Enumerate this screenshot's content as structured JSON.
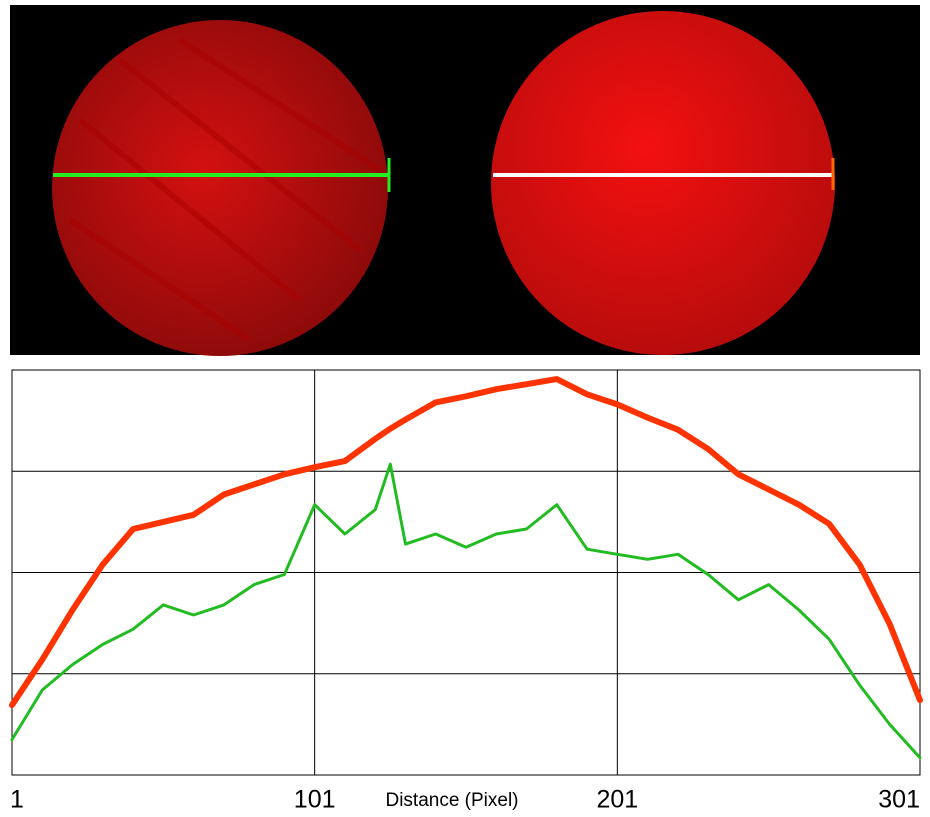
{
  "chart_data": {
    "type": "line",
    "x_label": "Distance (Pixel)",
    "x": [
      1,
      11,
      21,
      31,
      41,
      51,
      61,
      71,
      81,
      91,
      101,
      111,
      121,
      126,
      131,
      141,
      151,
      161,
      171,
      181,
      191,
      201,
      211,
      221,
      231,
      241,
      251,
      261,
      271,
      281,
      291,
      301
    ],
    "series": [
      {
        "color": "#ff3300",
        "values": [
          0.69,
          1.14,
          1.63,
          2.08,
          2.43,
          2.5,
          2.57,
          2.77,
          2.87,
          2.97,
          3.04,
          3.1,
          3.32,
          3.42,
          3.51,
          3.68,
          3.74,
          3.81,
          3.86,
          3.91,
          3.76,
          3.66,
          3.53,
          3.41,
          3.22,
          2.97,
          2.82,
          2.67,
          2.48,
          2.08,
          1.49,
          0.74
        ]
      },
      {
        "color": "#22bb22",
        "values": [
          0.35,
          0.84,
          1.09,
          1.29,
          1.44,
          1.68,
          1.58,
          1.68,
          1.88,
          1.98,
          2.67,
          2.38,
          2.62,
          3.07,
          2.28,
          2.38,
          2.25,
          2.38,
          2.43,
          2.67,
          2.23,
          2.18,
          2.13,
          2.18,
          1.98,
          1.73,
          1.88,
          1.63,
          1.34,
          0.89,
          0.5,
          0.17
        ]
      }
    ],
    "xlim": [
      1,
      301
    ],
    "xticks": [
      1,
      101,
      201,
      301
    ],
    "ylim": [
      0,
      4
    ],
    "ygrid": [
      1,
      2,
      3
    ],
    "grid": true
  }
}
